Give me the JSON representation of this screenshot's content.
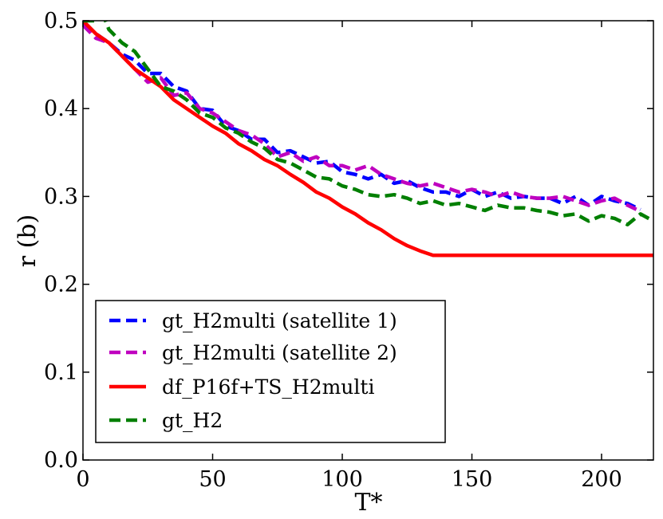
{
  "chart_data": {
    "type": "line",
    "title": "",
    "xlabel": "T*",
    "ylabel": "r (b)",
    "xlim": [
      0,
      220
    ],
    "ylim": [
      0.0,
      0.5
    ],
    "xticks": [
      0,
      50,
      100,
      150,
      200
    ],
    "yticks": [
      0.0,
      0.1,
      0.2,
      0.3,
      0.4,
      0.5
    ],
    "xtick_labels": [
      "0",
      "50",
      "100",
      "150",
      "200"
    ],
    "ytick_labels": [
      "0.0",
      "0.1",
      "0.2",
      "0.3",
      "0.4",
      "0.5"
    ],
    "grid": false,
    "legend_position": "lower-left",
    "series": [
      {
        "name": "gt_H2multi (satellite 1)",
        "color": "#0000ff",
        "style": "dashed",
        "x": [
          0,
          5,
          10,
          15,
          20,
          25,
          30,
          35,
          40,
          45,
          50,
          55,
          60,
          65,
          70,
          75,
          80,
          85,
          90,
          95,
          100,
          105,
          110,
          115,
          120,
          125,
          130,
          135,
          140,
          145,
          150,
          155,
          160,
          165,
          170,
          175,
          180,
          185,
          190,
          195,
          200,
          205,
          210,
          215
        ],
        "values": [
          0.495,
          0.485,
          0.475,
          0.462,
          0.455,
          0.44,
          0.44,
          0.425,
          0.42,
          0.4,
          0.398,
          0.38,
          0.375,
          0.365,
          0.365,
          0.35,
          0.352,
          0.345,
          0.338,
          0.34,
          0.328,
          0.325,
          0.32,
          0.325,
          0.315,
          0.318,
          0.31,
          0.305,
          0.305,
          0.3,
          0.308,
          0.3,
          0.305,
          0.298,
          0.3,
          0.298,
          0.298,
          0.292,
          0.3,
          0.29,
          0.3,
          0.295,
          0.292,
          0.285
        ]
      },
      {
        "name": "gt_H2multi (satellite 2)",
        "color": "#bf00bf",
        "style": "dashed",
        "x": [
          0,
          5,
          10,
          15,
          20,
          25,
          30,
          35,
          40,
          45,
          50,
          55,
          60,
          65,
          70,
          75,
          80,
          85,
          90,
          95,
          100,
          105,
          110,
          115,
          120,
          125,
          130,
          135,
          140,
          145,
          150,
          155,
          160,
          165,
          170,
          175,
          180,
          185,
          190,
          195,
          200,
          205,
          210,
          215
        ],
        "values": [
          0.495,
          0.48,
          0.475,
          0.46,
          0.445,
          0.43,
          0.435,
          0.415,
          0.418,
          0.4,
          0.395,
          0.385,
          0.375,
          0.37,
          0.36,
          0.345,
          0.35,
          0.34,
          0.345,
          0.335,
          0.335,
          0.33,
          0.335,
          0.325,
          0.32,
          0.315,
          0.312,
          0.315,
          0.31,
          0.305,
          0.308,
          0.305,
          0.3,
          0.305,
          0.3,
          0.298,
          0.298,
          0.3,
          0.295,
          0.29,
          0.295,
          0.298,
          0.29,
          0.283
        ]
      },
      {
        "name": "df_P16f+TS_H2multi",
        "color": "#ff0000",
        "style": "solid",
        "x": [
          0,
          5,
          10,
          15,
          20,
          25,
          30,
          35,
          40,
          45,
          50,
          55,
          60,
          65,
          70,
          75,
          80,
          85,
          90,
          95,
          100,
          105,
          110,
          115,
          120,
          125,
          130,
          135,
          140,
          145,
          150,
          155,
          160,
          165,
          170,
          175,
          180,
          185,
          190,
          195,
          200,
          205,
          210,
          215,
          220
        ],
        "values": [
          0.5,
          0.485,
          0.475,
          0.46,
          0.445,
          0.435,
          0.425,
          0.41,
          0.4,
          0.39,
          0.38,
          0.372,
          0.36,
          0.352,
          0.342,
          0.335,
          0.325,
          0.316,
          0.305,
          0.298,
          0.288,
          0.28,
          0.27,
          0.262,
          0.252,
          0.244,
          0.238,
          0.233,
          0.233,
          0.233,
          0.233,
          0.233,
          0.233,
          0.233,
          0.233,
          0.233,
          0.233,
          0.233,
          0.233,
          0.233,
          0.233,
          0.233,
          0.233,
          0.233,
          0.233
        ]
      },
      {
        "name": "gt_H2",
        "color": "#007f00",
        "style": "dashed",
        "x": [
          0,
          5,
          8,
          10,
          15,
          20,
          25,
          30,
          35,
          40,
          45,
          50,
          55,
          60,
          65,
          70,
          75,
          80,
          85,
          90,
          95,
          100,
          105,
          110,
          115,
          120,
          125,
          130,
          135,
          140,
          145,
          150,
          155,
          160,
          165,
          170,
          175,
          180,
          185,
          190,
          195,
          200,
          205,
          210,
          215,
          220
        ],
        "values": [
          0.5,
          0.5,
          0.505,
          0.49,
          0.475,
          0.465,
          0.445,
          0.425,
          0.42,
          0.41,
          0.395,
          0.39,
          0.378,
          0.372,
          0.362,
          0.355,
          0.342,
          0.338,
          0.33,
          0.322,
          0.32,
          0.312,
          0.308,
          0.302,
          0.3,
          0.302,
          0.298,
          0.292,
          0.295,
          0.29,
          0.292,
          0.288,
          0.284,
          0.29,
          0.287,
          0.287,
          0.284,
          0.282,
          0.278,
          0.28,
          0.272,
          0.278,
          0.275,
          0.268,
          0.28,
          0.272
        ]
      }
    ]
  }
}
